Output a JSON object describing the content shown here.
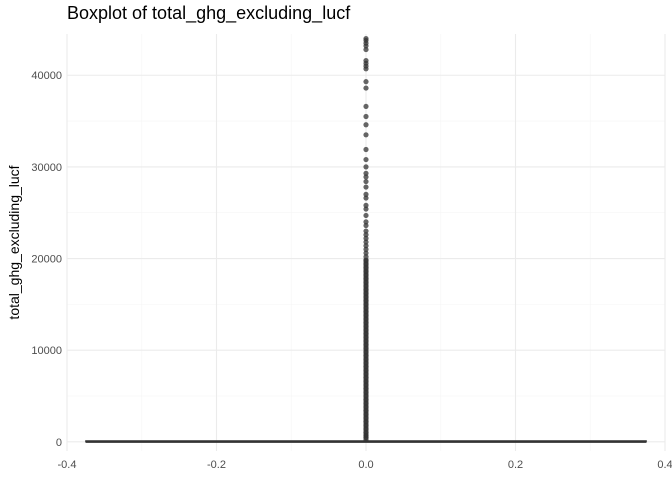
{
  "chart_data": {
    "type": "boxplot",
    "title": "Boxplot of total_ghg_excluding_lucf",
    "xlabel": "",
    "ylabel": "total_ghg_excluding_lucf",
    "xlim": [
      -0.4,
      0.4
    ],
    "ylim": [
      -1000,
      44500
    ],
    "x_ticks": [
      -0.4,
      -0.2,
      0.0,
      0.2,
      0.4
    ],
    "x_tick_labels": [
      "-0.4",
      "-0.2",
      "0.0",
      "0.2",
      "0.4"
    ],
    "y_ticks": [
      0,
      10000,
      20000,
      30000,
      40000
    ],
    "y_tick_labels": [
      "0",
      "10000",
      "20000",
      "30000",
      "40000"
    ],
    "grid": true,
    "box": {
      "x_center": 0.0,
      "x_min": -0.375,
      "x_max": 0.375,
      "q1": 0,
      "median": 0,
      "q3": 120,
      "whisker_low": 0,
      "whisker_high": 300
    },
    "outliers": [
      44000,
      43800,
      43500,
      43200,
      42800,
      41600,
      41300,
      41000,
      40700,
      39300,
      38600,
      36600,
      35500,
      34600,
      33500,
      31900,
      30800,
      30000,
      29300,
      28900,
      28400,
      27800,
      27000,
      26600,
      25800,
      25400,
      24700,
      24000,
      23600,
      23000,
      22600,
      22200,
      21800,
      21400,
      21000,
      20600,
      20200,
      19800,
      19400,
      19000,
      18600,
      18200,
      17800,
      17400,
      17000,
      16600,
      16200,
      15800,
      15400,
      15000,
      14600,
      14200,
      13800,
      13400,
      13000,
      12600,
      12200,
      11800,
      11400,
      11000,
      10600,
      10200,
      9800,
      9400,
      9000,
      8600,
      8200,
      7800,
      7400,
      7000,
      6600,
      6200,
      5800,
      5400,
      5000,
      4600,
      4200,
      3800,
      3400,
      3000,
      2600,
      2200,
      1800,
      1400,
      1000,
      700,
      500
    ],
    "colors": {
      "box_line": "#333333",
      "outlier": "#333333",
      "grid_major": "#ebebeb",
      "grid_minor": "#f5f5f5"
    }
  }
}
